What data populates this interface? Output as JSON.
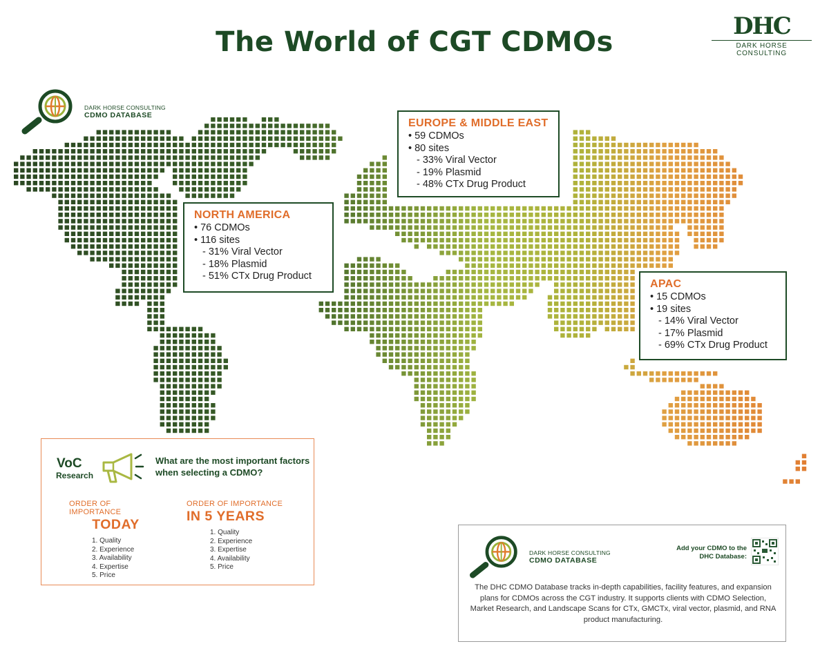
{
  "title": "The World of CGT CDMOs",
  "brand": {
    "mark": "DHC",
    "name": "DARK HORSE CONSULTING"
  },
  "db_logo": {
    "line1": "DARK HORSE CONSULTING",
    "line2": "CDMO DATABASE"
  },
  "regions": {
    "europe": {
      "name": "EUROPE & MIDDLE EAST",
      "cdmos": "• 59 CDMOs",
      "sites": "• 80 sites",
      "viral": "- 33% Viral Vector",
      "plasmid": "- 19% Plasmid",
      "drug": "- 48% CTx Drug Product"
    },
    "north_america": {
      "name": "NORTH AMERICA",
      "cdmos": "• 76 CDMOs",
      "sites": "• 116 sites",
      "viral": "- 31% Viral Vector",
      "plasmid": "- 18% Plasmid",
      "drug": "- 51% CTx Drug Product"
    },
    "apac": {
      "name": "APAC",
      "cdmos": "• 15 CDMOs",
      "sites": "• 19 sites",
      "viral": "- 14% Viral Vector",
      "plasmid": "- 17% Plasmid",
      "drug": "- 69% CTx Drug Product"
    }
  },
  "voc": {
    "title": "VoC",
    "subtitle": "Research",
    "question": "What are the most important factors when selecting a CDMO?",
    "today": {
      "label": "ORDER OF IMPORTANCE",
      "heading": "TODAY",
      "items": [
        "1. Quality",
        "2. Experience",
        "3. Availability",
        "4. Expertise",
        "5. Price"
      ]
    },
    "five_years": {
      "label": "ORDER OF IMPORTANCE",
      "heading": "IN 5 YEARS",
      "items": [
        "1. Quality",
        "2. Experience",
        "3. Expertise",
        "4. Availability",
        "5. Price"
      ]
    }
  },
  "info": {
    "cta": "Add your CDMO to the DHC Database:",
    "description": "The DHC CDMO Database tracks in-depth capabilities, facility features, and expansion plans for CDMOs across the CGT industry. It supports clients with CDMO Selection, Market Research, and Landscape Scans for CTx, GMCTx, viral vector, plasmid, and RNA product manufacturing."
  },
  "colors": {
    "dark_green": "#1d4a25",
    "orange": "#e06d2a",
    "map_west": "#3a5f27",
    "map_mid": "#a9b842",
    "map_east": "#e48a3a"
  }
}
